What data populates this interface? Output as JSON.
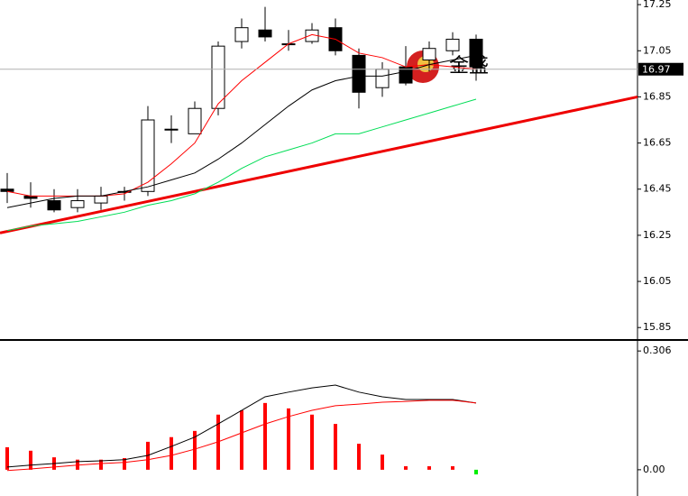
{
  "chart_data": [
    {
      "type": "candlestick",
      "categories": [
        null,
        null,
        null,
        null,
        null,
        null,
        null,
        null,
        null,
        null,
        null,
        null,
        null,
        null,
        null,
        null,
        null,
        null,
        null,
        null,
        null
      ],
      "open": [
        16.45,
        16.42,
        16.4,
        16.37,
        16.39,
        16.44,
        16.44,
        16.71,
        16.69,
        16.8,
        17.09,
        17.14,
        17.08,
        17.09,
        17.15,
        17.03,
        16.89,
        16.98,
        17.01,
        17.05,
        17.1
      ],
      "high": [
        16.52,
        16.48,
        16.45,
        16.45,
        16.46,
        16.46,
        16.81,
        16.77,
        16.83,
        17.09,
        17.19,
        17.24,
        17.14,
        17.17,
        17.19,
        17.06,
        17.0,
        17.07,
        17.09,
        17.13,
        17.12
      ],
      "low": [
        16.39,
        16.37,
        16.35,
        16.35,
        16.36,
        16.4,
        16.42,
        16.65,
        16.69,
        16.77,
        17.06,
        17.09,
        17.05,
        17.08,
        17.03,
        16.8,
        16.85,
        16.9,
        16.96,
        17.03,
        16.92
      ],
      "close": [
        16.44,
        16.41,
        16.36,
        16.4,
        16.42,
        16.44,
        16.75,
        16.71,
        16.8,
        17.07,
        17.15,
        17.11,
        17.08,
        17.14,
        17.05,
        16.87,
        16.97,
        16.91,
        17.06,
        17.1,
        16.98
      ],
      "up_color": "#ffffff",
      "down_color": "#000000",
      "edge_color": "#000000",
      "series": [
        {
          "color": "#ff0000",
          "values": [
            16.44,
            16.42,
            16.42,
            16.42,
            16.42,
            16.43,
            16.48,
            16.56,
            16.65,
            16.82,
            16.92,
            17.0,
            17.08,
            17.12,
            17.1,
            17.04,
            17.02,
            16.98,
            16.99,
            16.98,
            16.97
          ]
        },
        {
          "color": "#000000",
          "values": [
            16.37,
            16.39,
            16.41,
            16.42,
            16.42,
            16.44,
            16.46,
            16.49,
            16.52,
            16.58,
            16.65,
            16.73,
            16.81,
            16.88,
            16.92,
            16.94,
            16.94,
            16.96,
            16.99,
            17.01,
            17.03
          ]
        },
        {
          "color": "#00dd55",
          "values": [
            16.27,
            16.29,
            16.3,
            16.31,
            16.33,
            16.35,
            16.38,
            16.4,
            16.43,
            16.48,
            16.54,
            16.59,
            16.62,
            16.65,
            16.69,
            16.69,
            16.72,
            16.75,
            16.78,
            16.81,
            16.84
          ]
        }
      ],
      "trendline": {
        "color": "#ee0000",
        "values": [
          16.26,
          16.85
        ]
      },
      "last_price": 16.97,
      "watermark": "金盛",
      "ylim": [
        15.8,
        17.27
      ],
      "yticks": [
        17.25,
        17.05,
        16.85,
        16.65,
        16.45,
        16.25,
        16.05,
        15.85
      ]
    },
    {
      "type": "bar",
      "values": [
        0.058,
        0.049,
        0.032,
        0.026,
        0.026,
        0.03,
        0.072,
        0.084,
        0.1,
        0.142,
        0.153,
        0.172,
        0.158,
        0.142,
        0.118,
        0.067,
        0.039,
        0.009,
        0.009,
        0.009,
        -0.012
      ],
      "up_color": "#ff0000",
      "down_color": "#00ee00",
      "series": [
        {
          "color": "#000000",
          "values": [
            0.007,
            0.012,
            0.016,
            0.021,
            0.023,
            0.026,
            0.037,
            0.06,
            0.084,
            0.118,
            0.153,
            0.188,
            0.2,
            0.211,
            0.218,
            0.2,
            0.188,
            0.181,
            0.181,
            0.181,
            0.172
          ]
        },
        {
          "color": "#ff0000",
          "values": [
            -0.002,
            0.002,
            0.007,
            0.012,
            0.016,
            0.019,
            0.026,
            0.037,
            0.053,
            0.072,
            0.095,
            0.118,
            0.137,
            0.153,
            0.165,
            0.169,
            0.174,
            0.176,
            0.179,
            0.179,
            0.172
          ]
        }
      ],
      "ylim": [
        -0.063,
        0.332
      ],
      "yticks": [
        0.306,
        {
          "value": 0,
          "label": "0.00"
        }
      ]
    }
  ]
}
